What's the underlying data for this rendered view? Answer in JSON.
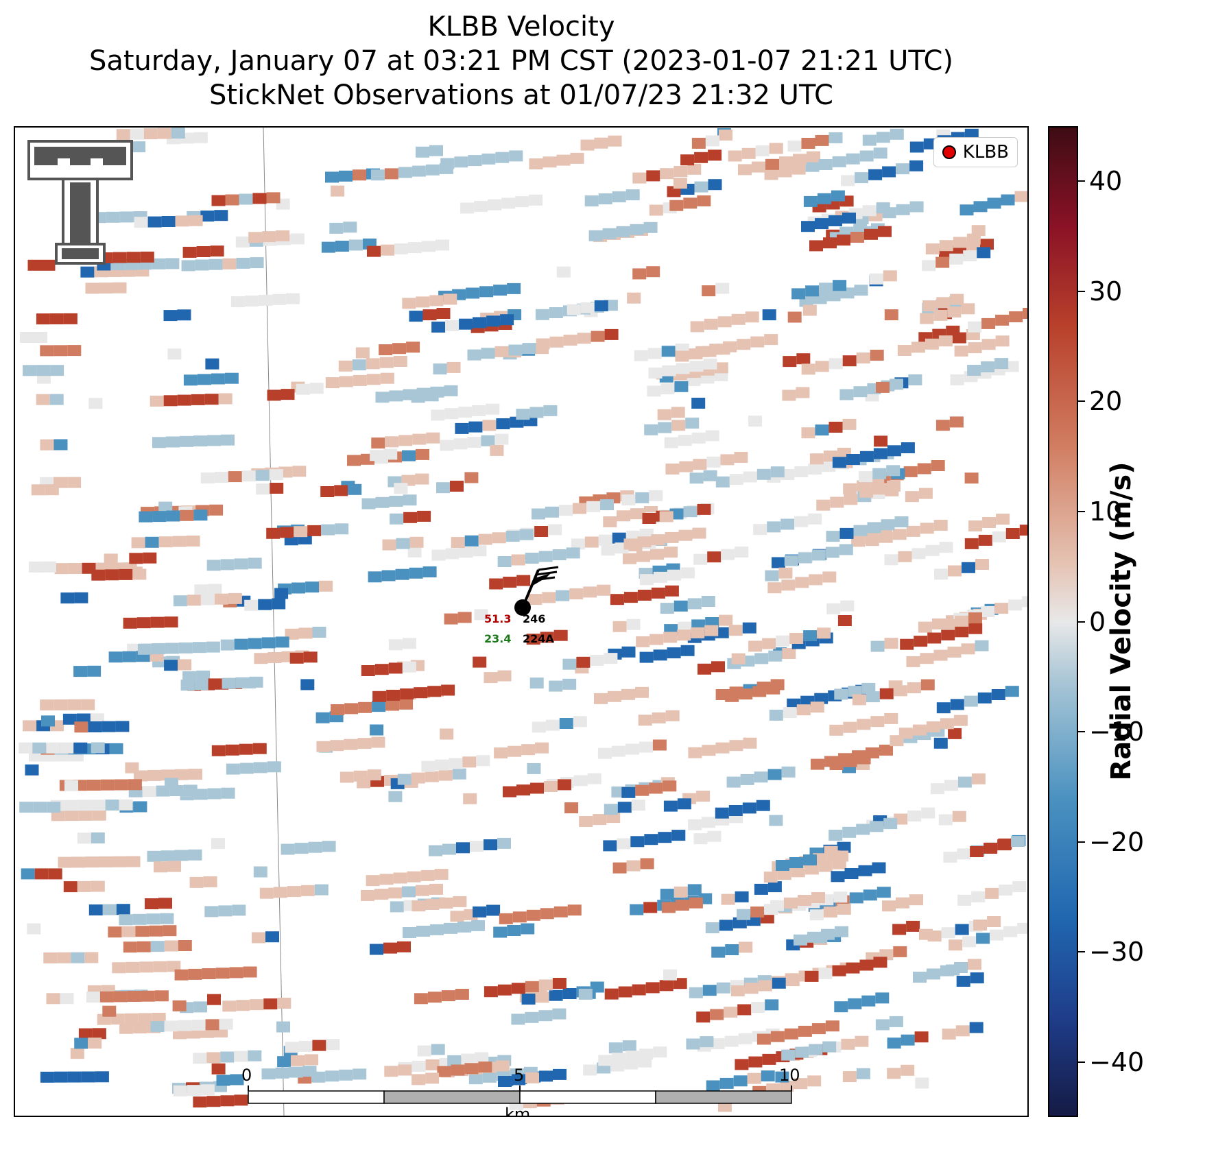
{
  "title": {
    "line1": "KLBB Velocity",
    "line2": "Saturday, January 07 at 03:21 PM CST (2023-01-07 21:21 UTC)",
    "line3": "StickNet Observations at 01/07/23 21:32 UTC"
  },
  "legend": {
    "label": "KLBB",
    "marker_color": "#e00000"
  },
  "logo": {
    "name": "texas-tech-double-t-logo"
  },
  "station": {
    "wind_speed": "51.3",
    "wind_dir": "246",
    "temperature": "23.4",
    "id": "224A"
  },
  "scale_bar": {
    "labels": [
      "0",
      "5",
      "10"
    ],
    "unit": "km"
  },
  "colorbar": {
    "title": "Radial Velocity (m/s)",
    "ticks": [
      "40",
      "30",
      "20",
      "10",
      "0",
      "−10",
      "−20",
      "−30",
      "−40"
    ],
    "range": [
      -45,
      45
    ]
  },
  "colors": {
    "strong_pos": "#b8402b",
    "pos": "#d07c60",
    "weak_pos": "#e5c2b2",
    "neutral": "#e8e8e8",
    "weak_neg": "#a9c6d6",
    "neg": "#4a91c0",
    "strong_neg": "#2067b0"
  }
}
